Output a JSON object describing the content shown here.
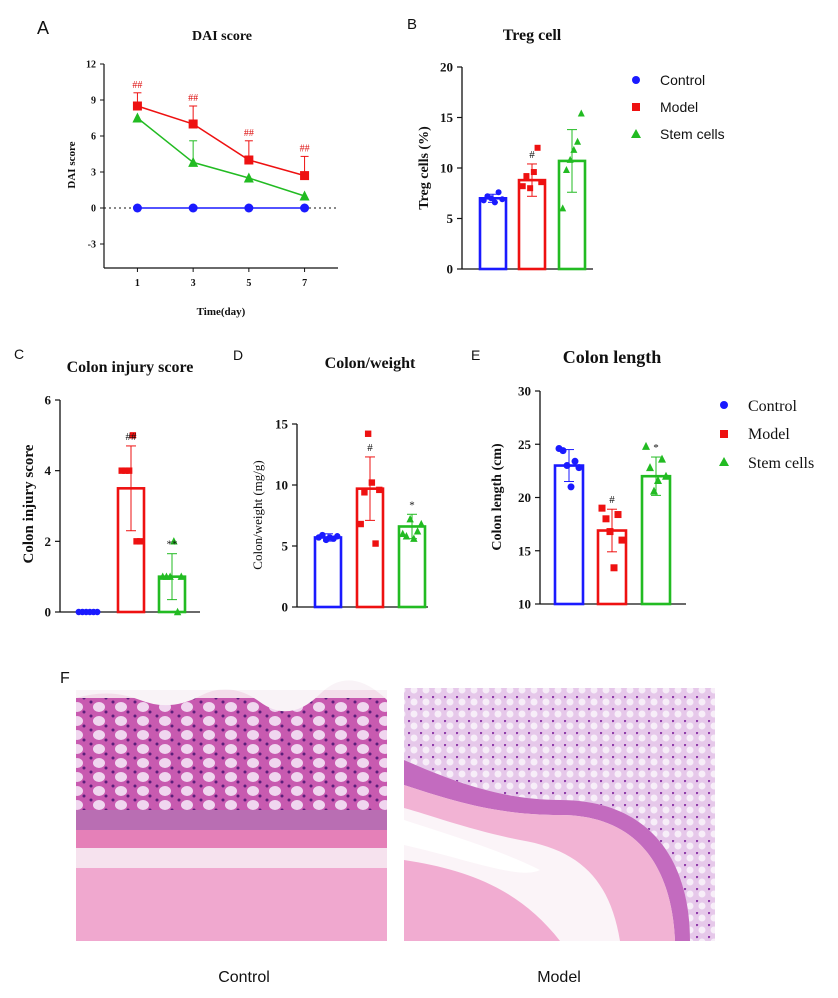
{
  "colors": {
    "control": "#1a1aff",
    "model": "#ee1111",
    "stem": "#22bb22",
    "axis": "#111111",
    "sig": "#dd1111"
  },
  "panel_letters": {
    "A": "A",
    "B": "B",
    "C": "C",
    "D": "D",
    "E": "E",
    "F": "F"
  },
  "legend": {
    "control": "Control",
    "model": "Model",
    "stem": "Stem cells"
  },
  "photos": {
    "left_caption": "Control",
    "right_caption": "Model"
  },
  "chart_data": [
    {
      "id": "A",
      "type": "line",
      "title": "DAI score",
      "xlabel": "Time(day)",
      "ylabel": "DAI score",
      "x": [
        1,
        3,
        5,
        7
      ],
      "xlim": [
        -0.2,
        8.2
      ],
      "ylim": [
        -5,
        12
      ],
      "yticks": [
        -3,
        0,
        3,
        6,
        9,
        12
      ],
      "reference_line": 0,
      "series": [
        {
          "name": "Control",
          "values": [
            0,
            0,
            0,
            0
          ],
          "errors": [
            0,
            0,
            0,
            0
          ],
          "marker": "circle",
          "labels": [
            "",
            "",
            "",
            ""
          ]
        },
        {
          "name": "Model",
          "values": [
            8.5,
            7.0,
            4.0,
            2.7
          ],
          "errors": [
            1.1,
            1.5,
            1.6,
            1.6
          ],
          "marker": "square",
          "labels": [
            "##",
            "##",
            "##",
            "##"
          ]
        },
        {
          "name": "Stem cells",
          "values": [
            7.5,
            3.8,
            2.5,
            1.0
          ],
          "errors": [
            0,
            1.8,
            0,
            0
          ],
          "marker": "triangle",
          "labels": [
            "",
            "",
            "",
            ""
          ]
        }
      ]
    },
    {
      "id": "B",
      "type": "bar",
      "title": "Treg cell",
      "xlabel": "",
      "ylabel": "Treg cells (%)",
      "categories": [
        "Control",
        "Model",
        "Stem cells"
      ],
      "ylim": [
        0,
        20
      ],
      "yticks": [
        0,
        5,
        10,
        15,
        20
      ],
      "values": [
        7.0,
        8.8,
        10.7
      ],
      "errors": [
        0.4,
        1.6,
        3.1
      ],
      "labels": [
        "",
        "#",
        ""
      ],
      "points": [
        [
          6.8,
          7.2,
          7.0,
          6.6,
          7.6,
          6.9
        ],
        [
          8.2,
          9.2,
          8.0,
          9.6,
          12.0,
          8.6
        ],
        [
          6.0,
          9.8,
          10.8,
          11.8,
          12.6,
          15.4
        ]
      ]
    },
    {
      "id": "C",
      "type": "bar",
      "title": "Colon injury score",
      "xlabel": "",
      "ylabel": "Colon injury score",
      "categories": [
        "Control",
        "Model",
        "Stem cells"
      ],
      "ylim": [
        0,
        6
      ],
      "yticks": [
        0,
        2,
        4,
        6
      ],
      "values": [
        0,
        3.5,
        1.0
      ],
      "errors": [
        0,
        1.2,
        0.65
      ],
      "labels": [
        "",
        "##",
        "**"
      ],
      "points": [
        [
          0,
          0,
          0,
          0,
          0,
          0
        ],
        [
          4,
          4,
          4,
          5,
          2,
          2
        ],
        [
          1,
          1,
          1,
          2,
          0,
          1
        ]
      ]
    },
    {
      "id": "D",
      "type": "bar",
      "title": "Colon/weight",
      "xlabel": "",
      "ylabel": "Colon/weight (mg/g)",
      "categories": [
        "Control",
        "Model",
        "Stem cells"
      ],
      "ylim": [
        0,
        15
      ],
      "yticks": [
        0,
        5,
        10,
        15
      ],
      "values": [
        5.7,
        9.7,
        6.6
      ],
      "errors": [
        0.3,
        2.6,
        1.0
      ],
      "labels": [
        "",
        "#",
        "*"
      ],
      "points": [
        [
          5.7,
          5.9,
          5.5,
          5.7,
          5.6,
          5.8
        ],
        [
          6.8,
          9.4,
          14.2,
          10.2,
          5.2,
          9.6
        ],
        [
          6.0,
          5.8,
          7.2,
          5.6,
          6.2,
          6.8
        ]
      ]
    },
    {
      "id": "E",
      "type": "bar",
      "title": "Colon length",
      "xlabel": "",
      "ylabel": "Colon length (cm)",
      "categories": [
        "Control",
        "Model",
        "Stem cells"
      ],
      "ylim": [
        10,
        30
      ],
      "yticks": [
        10,
        15,
        20,
        25,
        30
      ],
      "values": [
        23.0,
        16.9,
        22.0
      ],
      "errors": [
        1.5,
        2.0,
        1.8
      ],
      "labels": [
        "",
        "#",
        "*"
      ],
      "points": [
        [
          24.6,
          24.4,
          23.0,
          21.0,
          23.4,
          22.8
        ],
        [
          19.0,
          18.0,
          16.8,
          13.4,
          18.4,
          16.0
        ],
        [
          24.8,
          22.8,
          20.6,
          21.6,
          23.6,
          22.0
        ]
      ]
    }
  ]
}
